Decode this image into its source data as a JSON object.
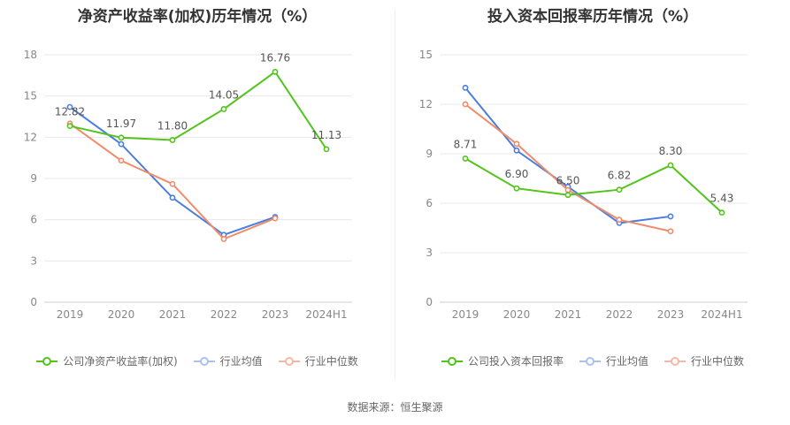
{
  "source_text": "数据来源：恒生聚源",
  "chart_data": [
    {
      "type": "line",
      "title": "净资产收益率(加权)历年情况（%）",
      "xlabel": "",
      "ylabel": "",
      "categories": [
        "2019",
        "2020",
        "2021",
        "2022",
        "2023",
        "2024H1"
      ],
      "ylim": [
        0,
        18
      ],
      "yticks": [
        0,
        3,
        6,
        9,
        12,
        15,
        18
      ],
      "grid": true,
      "legend_position": "bottom",
      "series": [
        {
          "name": "公司净资产收益率(加权)",
          "color": "#52c41a",
          "values": [
            12.82,
            11.97,
            11.8,
            14.05,
            16.76,
            11.13
          ],
          "labels": [
            "12.82",
            "11.97",
            "11.80",
            "14.05",
            "16.76",
            "11.13"
          ]
        },
        {
          "name": "行业均值",
          "color": "#4a7de0",
          "values": [
            14.2,
            11.5,
            7.6,
            4.9,
            6.2,
            null
          ]
        },
        {
          "name": "行业中位数",
          "color": "#f08c6a",
          "values": [
            13.0,
            10.3,
            8.6,
            4.6,
            6.1,
            null
          ]
        }
      ]
    },
    {
      "type": "line",
      "title": "投入资本回报率历年情况（%）",
      "xlabel": "",
      "ylabel": "",
      "categories": [
        "2019",
        "2020",
        "2021",
        "2022",
        "2023",
        "2024H1"
      ],
      "ylim": [
        0,
        15
      ],
      "yticks": [
        0,
        3,
        6,
        9,
        12,
        15
      ],
      "grid": true,
      "legend_position": "bottom",
      "series": [
        {
          "name": "公司投入资本回报率",
          "color": "#52c41a",
          "values": [
            8.71,
            6.9,
            6.5,
            6.82,
            8.3,
            5.43
          ],
          "labels": [
            "8.71",
            "6.90",
            "6.50",
            "6.82",
            "8.30",
            "5.43"
          ]
        },
        {
          "name": "行业均值",
          "color": "#4a7de0",
          "values": [
            13.0,
            9.2,
            7.0,
            4.8,
            5.2,
            null
          ]
        },
        {
          "name": "行业中位数",
          "color": "#f08c6a",
          "values": [
            12.0,
            9.6,
            6.8,
            5.0,
            4.3,
            null
          ]
        }
      ]
    }
  ]
}
